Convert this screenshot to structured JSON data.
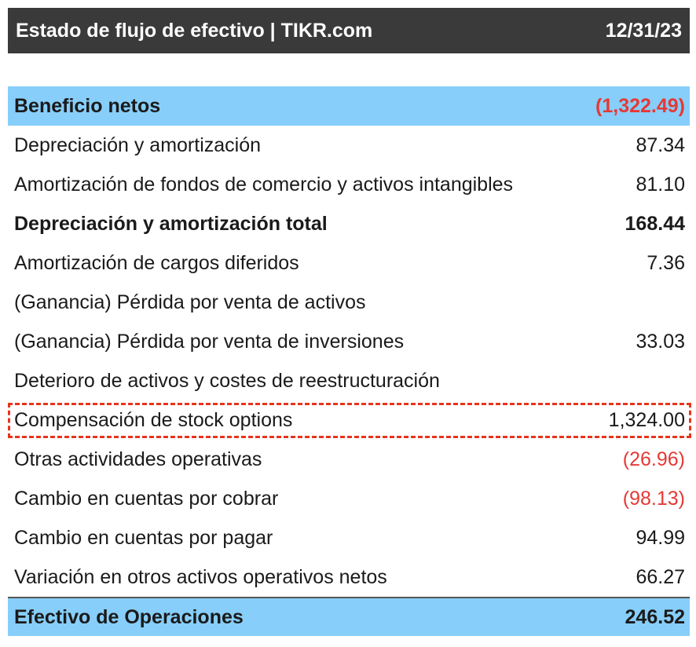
{
  "header": {
    "title": "Estado de flujo de efectivo | TIKR.com",
    "date": "12/31/23"
  },
  "rows": [
    {
      "label": "Beneficio netos",
      "value": "(1,322.49)"
    },
    {
      "label": "Depreciación y amortización",
      "value": "87.34"
    },
    {
      "label": "Amortización de fondos de comercio y activos intangibles",
      "value": "81.10"
    },
    {
      "label": "Depreciación y amortización total",
      "value": "168.44"
    },
    {
      "label": "Amortización de cargos diferidos",
      "value": "7.36"
    },
    {
      "label": "(Ganancia) Pérdida por venta de activos",
      "value": ""
    },
    {
      "label": "(Ganancia) Pérdida por venta de inversiones",
      "value": "33.03"
    },
    {
      "label": "Deterioro de activos y costes de reestructuración",
      "value": ""
    },
    {
      "label": "Compensación de stock options",
      "value": "1,324.00"
    },
    {
      "label": "Otras actividades operativas",
      "value": "(26.96)"
    },
    {
      "label": "Cambio en cuentas por cobrar",
      "value": "(98.13)"
    },
    {
      "label": "Cambio en cuentas por pagar",
      "value": "94.99"
    },
    {
      "label": "Variación en otros activos operativos netos",
      "value": "66.27"
    },
    {
      "label": "Efectivo de Operaciones",
      "value": "246.52"
    }
  ],
  "colors": {
    "header_bg": "#3a3a3a",
    "highlight_bg": "#87cefa",
    "negative": "#e53935",
    "callout_border": "#e8341c"
  }
}
